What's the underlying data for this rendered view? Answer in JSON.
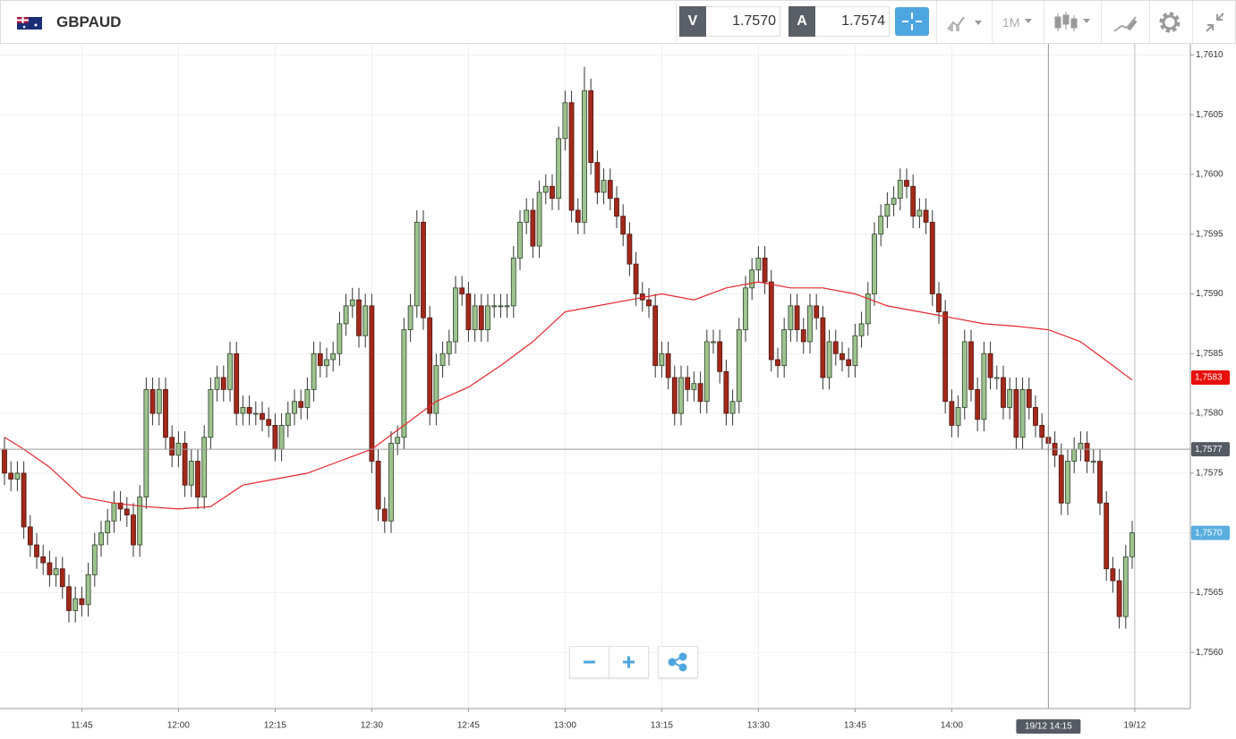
{
  "toolbar": {
    "symbol": "GBPAUD",
    "bid": {
      "label": "V",
      "price": "1.7570"
    },
    "ask": {
      "label": "A",
      "price": "1.7574"
    },
    "timeframe": "1M"
  },
  "chart_data": {
    "type": "candlestick",
    "up_color": "#9dc48e",
    "down_color": "#a3291b",
    "xlim": [
      -0.694,
      184.03
    ],
    "xticks": [
      {
        "value": 12,
        "label": "11:45"
      },
      {
        "value": 27,
        "label": "12:00"
      },
      {
        "value": 42,
        "label": "12:15"
      },
      {
        "value": 57,
        "label": "12:30"
      },
      {
        "value": 72,
        "label": "12:45"
      },
      {
        "value": 87,
        "label": "13:00"
      },
      {
        "value": 102,
        "label": "13:15"
      },
      {
        "value": 117,
        "label": "13:30"
      },
      {
        "value": 132,
        "label": "13:45"
      },
      {
        "value": 147,
        "label": "14:00"
      },
      {
        "value": 175.4,
        "label": "19/12"
      }
    ],
    "ylim": [
      1.75553,
      1.7611
    ],
    "yticks": [
      {
        "value": 1.756,
        "label": "1,7560"
      },
      {
        "value": 1.7565,
        "label": "1,7565"
      },
      {
        "value": 1.757,
        "label": "1,7570"
      },
      {
        "value": 1.7575,
        "label": "1,7575"
      },
      {
        "value": 1.758,
        "label": "1,7580"
      },
      {
        "value": 1.7585,
        "label": "1,7585"
      },
      {
        "value": 1.759,
        "label": "1,7590"
      },
      {
        "value": 1.7595,
        "label": "1,7595"
      },
      {
        "value": 1.76,
        "label": "1,7600"
      },
      {
        "value": 1.7605,
        "label": "1,7605"
      },
      {
        "value": 1.761,
        "label": "1,7610"
      }
    ],
    "grid": true,
    "open": [
      1.7577,
      1.7575,
      1.75745,
      1.7575,
      1.75705,
      1.7569,
      1.7568,
      1.75675,
      1.75665,
      1.7567,
      1.75655,
      1.75635,
      1.75645,
      1.7564,
      1.75665,
      1.7569,
      1.757,
      1.7571,
      1.75725,
      1.7572,
      1.75715,
      1.7569,
      1.7573,
      1.7582,
      1.758,
      1.7582,
      1.7578,
      1.75765,
      1.75775,
      1.7574,
      1.7576,
      1.7573,
      1.7578,
      1.7582,
      1.7583,
      1.7582,
      1.7585,
      1.758,
      1.75805,
      1.758,
      1.758,
      1.75795,
      1.7579,
      1.7577,
      1.7579,
      1.758,
      1.7581,
      1.75805,
      1.7582,
      1.7585,
      1.7584,
      1.75845,
      1.7585,
      1.75875,
      1.7589,
      1.75895,
      1.75865,
      1.7589,
      1.7576,
      1.7572,
      1.7571,
      1.75775,
      1.7578,
      1.7587,
      1.7589,
      1.7596,
      1.7588,
      1.758,
      1.7584,
      1.7585,
      1.7586,
      1.75905,
      1.759,
      1.7587,
      1.7589,
      1.7587,
      1.7589,
      1.7589,
      1.7589,
      1.7589,
      1.7593,
      1.7596,
      1.7597,
      1.7594,
      1.75985,
      1.7599,
      1.7598,
      1.7603,
      1.7606,
      1.7597,
      1.7596,
      1.7607,
      1.7601,
      1.75985,
      1.75995,
      1.7598,
      1.75965,
      1.7595,
      1.75925,
      1.759,
      1.75895,
      1.7589,
      1.7584,
      1.7585,
      1.7583,
      1.758,
      1.7583,
      1.7582,
      1.75825,
      1.7581,
      1.7586,
      1.7586,
      1.75835,
      1.758,
      1.7581,
      1.7587,
      1.75905,
      1.7592,
      1.7593,
      1.7591,
      1.75845,
      1.7584,
      1.7587,
      1.7589,
      1.7587,
      1.7586,
      1.7589,
      1.7588,
      1.7583,
      1.7586,
      1.7585,
      1.75845,
      1.7584,
      1.75865,
      1.75875,
      1.759,
      1.7595,
      1.75965,
      1.75975,
      1.7598,
      1.75995,
      1.7599,
      1.75965,
      1.7597,
      1.7596,
      1.759,
      1.75885,
      1.7581,
      1.7579,
      1.75805,
      1.7586,
      1.7582,
      1.75795,
      1.7585,
      1.7583,
      1.7583,
      1.75805,
      1.7582,
      1.7578,
      1.7582,
      1.75805,
      1.7579,
      1.7578,
      1.75775,
      1.75765,
      1.75725,
      1.7576,
      1.7577,
      1.75775,
      1.7576,
      1.7576,
      1.75725,
      1.7567,
      1.7566,
      1.7563,
      1.7568
    ],
    "high": [
      1.7578,
      1.7576,
      1.7576,
      1.7576,
      1.75715,
      1.757,
      1.7569,
      1.75685,
      1.7568,
      1.7568,
      1.75665,
      1.75655,
      1.75655,
      1.75675,
      1.757,
      1.7571,
      1.7572,
      1.75735,
      1.75735,
      1.7573,
      1.75725,
      1.7574,
      1.7583,
      1.7583,
      1.7583,
      1.7583,
      1.7579,
      1.75785,
      1.75785,
      1.7577,
      1.7577,
      1.7579,
      1.7583,
      1.7584,
      1.7584,
      1.7586,
      1.7586,
      1.75815,
      1.75815,
      1.7581,
      1.7581,
      1.75805,
      1.758,
      1.758,
      1.7581,
      1.7582,
      1.7582,
      1.7583,
      1.7586,
      1.7586,
      1.75855,
      1.7586,
      1.75885,
      1.759,
      1.75905,
      1.75905,
      1.759,
      1.759,
      1.7577,
      1.7573,
      1.75785,
      1.7579,
      1.7588,
      1.759,
      1.7597,
      1.7597,
      1.7589,
      1.7585,
      1.7586,
      1.7587,
      1.75915,
      1.75915,
      1.7591,
      1.759,
      1.759,
      1.759,
      1.759,
      1.759,
      1.759,
      1.7594,
      1.7597,
      1.7598,
      1.7598,
      1.75995,
      1.76,
      1.76,
      1.7604,
      1.7607,
      1.7607,
      1.7598,
      1.7609,
      1.7608,
      1.7602,
      1.76005,
      1.76005,
      1.7599,
      1.75975,
      1.7596,
      1.75935,
      1.7591,
      1.75905,
      1.759,
      1.7586,
      1.7586,
      1.7584,
      1.7584,
      1.7584,
      1.75835,
      1.75835,
      1.7587,
      1.7587,
      1.7587,
      1.75845,
      1.7582,
      1.7588,
      1.75915,
      1.7593,
      1.7594,
      1.7594,
      1.7592,
      1.75855,
      1.7588,
      1.759,
      1.759,
      1.7588,
      1.759,
      1.759,
      1.7589,
      1.7587,
      1.7587,
      1.7586,
      1.75855,
      1.75875,
      1.75885,
      1.7591,
      1.7596,
      1.75975,
      1.75985,
      1.7599,
      1.76005,
      1.76005,
      1.76,
      1.7598,
      1.7598,
      1.7597,
      1.7591,
      1.75895,
      1.7582,
      1.75815,
      1.7587,
      1.7587,
      1.7583,
      1.7586,
      1.7586,
      1.7584,
      1.7584,
      1.7583,
      1.7583,
      1.7583,
      1.7583,
      1.75815,
      1.758,
      1.7579,
      1.75785,
      1.75775,
      1.7577,
      1.7578,
      1.75785,
      1.75785,
      1.7577,
      1.7577,
      1.75735,
      1.7568,
      1.7567,
      1.7569,
      1.7571
    ],
    "low": [
      1.7574,
      1.75735,
      1.75735,
      1.75695,
      1.7568,
      1.7567,
      1.75665,
      1.75655,
      1.75655,
      1.75645,
      1.75625,
      1.75625,
      1.7563,
      1.7563,
      1.75655,
      1.7568,
      1.7569,
      1.757,
      1.7571,
      1.75705,
      1.7568,
      1.7568,
      1.7572,
      1.7579,
      1.7579,
      1.7577,
      1.75755,
      1.75755,
      1.7573,
      1.7573,
      1.7572,
      1.7572,
      1.7577,
      1.7581,
      1.7581,
      1.7581,
      1.7579,
      1.7579,
      1.7579,
      1.7579,
      1.75785,
      1.7578,
      1.7576,
      1.7576,
      1.7578,
      1.7579,
      1.75795,
      1.75795,
      1.7581,
      1.7583,
      1.7583,
      1.75835,
      1.7584,
      1.75865,
      1.7588,
      1.75855,
      1.75855,
      1.7575,
      1.7571,
      1.757,
      1.757,
      1.75765,
      1.7577,
      1.7586,
      1.7588,
      1.7587,
      1.7579,
      1.7579,
      1.7583,
      1.7584,
      1.7585,
      1.7589,
      1.7586,
      1.7586,
      1.7586,
      1.7586,
      1.7588,
      1.7588,
      1.7588,
      1.7588,
      1.7592,
      1.7595,
      1.7593,
      1.7593,
      1.75975,
      1.7597,
      1.7597,
      1.7602,
      1.7596,
      1.7595,
      1.7595,
      1.76,
      1.75975,
      1.75975,
      1.7597,
      1.75955,
      1.7594,
      1.75915,
      1.7589,
      1.75885,
      1.7588,
      1.7583,
      1.7583,
      1.7582,
      1.7579,
      1.7579,
      1.7581,
      1.7581,
      1.758,
      1.758,
      1.7585,
      1.75825,
      1.7579,
      1.7579,
      1.758,
      1.7586,
      1.75895,
      1.7591,
      1.759,
      1.75835,
      1.7583,
      1.7583,
      1.7586,
      1.7586,
      1.7585,
      1.7585,
      1.7587,
      1.7582,
      1.7582,
      1.7584,
      1.75835,
      1.7583,
      1.7583,
      1.75855,
      1.75865,
      1.7589,
      1.7594,
      1.75955,
      1.75965,
      1.7597,
      1.7598,
      1.75955,
      1.75955,
      1.7595,
      1.7589,
      1.75875,
      1.758,
      1.7578,
      1.7578,
      1.75795,
      1.7581,
      1.75785,
      1.75785,
      1.7582,
      1.7582,
      1.75795,
      1.75795,
      1.7577,
      1.7577,
      1.75795,
      1.7578,
      1.7577,
      1.75765,
      1.75755,
      1.75715,
      1.75715,
      1.7575,
      1.7576,
      1.7575,
      1.7575,
      1.75715,
      1.7566,
      1.7565,
      1.7562,
      1.7562,
      1.7567
    ],
    "close": [
      1.7575,
      1.75745,
      1.7575,
      1.75705,
      1.7569,
      1.7568,
      1.75675,
      1.75665,
      1.7567,
      1.75655,
      1.75635,
      1.75645,
      1.7564,
      1.75665,
      1.7569,
      1.757,
      1.7571,
      1.75725,
      1.7572,
      1.75715,
      1.7569,
      1.7573,
      1.7582,
      1.758,
      1.7582,
      1.7578,
      1.75765,
      1.75775,
      1.7574,
      1.7576,
      1.7573,
      1.7578,
      1.7582,
      1.7583,
      1.7582,
      1.7585,
      1.758,
      1.75805,
      1.758,
      1.758,
      1.75795,
      1.7579,
      1.7577,
      1.7579,
      1.758,
      1.7581,
      1.75805,
      1.7582,
      1.7585,
      1.7584,
      1.75845,
      1.7585,
      1.75875,
      1.7589,
      1.75895,
      1.75865,
      1.7589,
      1.7576,
      1.7572,
      1.7571,
      1.75775,
      1.7578,
      1.7587,
      1.7589,
      1.7596,
      1.7588,
      1.758,
      1.7584,
      1.7585,
      1.7586,
      1.75905,
      1.759,
      1.7587,
      1.7589,
      1.7587,
      1.7589,
      1.7589,
      1.7589,
      1.7589,
      1.7593,
      1.7596,
      1.7597,
      1.7594,
      1.75985,
      1.7599,
      1.7598,
      1.7603,
      1.7606,
      1.7597,
      1.7596,
      1.7607,
      1.7601,
      1.75985,
      1.75995,
      1.7598,
      1.75965,
      1.7595,
      1.75925,
      1.759,
      1.75895,
      1.7589,
      1.7584,
      1.7585,
      1.7583,
      1.758,
      1.7583,
      1.7582,
      1.75825,
      1.7581,
      1.7586,
      1.7586,
      1.75835,
      1.758,
      1.7581,
      1.7587,
      1.75905,
      1.7592,
      1.7593,
      1.7591,
      1.75845,
      1.7584,
      1.7587,
      1.7589,
      1.7587,
      1.7586,
      1.7589,
      1.7588,
      1.7583,
      1.7586,
      1.7585,
      1.75845,
      1.7584,
      1.75865,
      1.75875,
      1.759,
      1.7595,
      1.75965,
      1.75975,
      1.7598,
      1.75995,
      1.7599,
      1.75965,
      1.7597,
      1.7596,
      1.759,
      1.75885,
      1.7581,
      1.7579,
      1.75805,
      1.7586,
      1.7582,
      1.75795,
      1.7585,
      1.7583,
      1.7583,
      1.75805,
      1.7582,
      1.7578,
      1.7582,
      1.75805,
      1.7579,
      1.7578,
      1.75775,
      1.75765,
      1.75725,
      1.7576,
      1.7577,
      1.75775,
      1.7576,
      1.7576,
      1.75725,
      1.7567,
      1.7566,
      1.7563,
      1.7568,
      1.757
    ],
    "ma": {
      "color": "#e3262b",
      "x": [
        0,
        3,
        7,
        12,
        17,
        22,
        27,
        32,
        37,
        42,
        47,
        52,
        57,
        62,
        67,
        72,
        77,
        82,
        87,
        92,
        97,
        102,
        107,
        112,
        117,
        122,
        127,
        132,
        137,
        142,
        147,
        152,
        157,
        162,
        167,
        172,
        175
      ],
      "values": [
        1.7578,
        1.7577,
        1.75755,
        1.7573,
        1.75725,
        1.75722,
        1.7572,
        1.75722,
        1.7574,
        1.75745,
        1.7575,
        1.7576,
        1.7577,
        1.7579,
        1.7581,
        1.75822,
        1.7584,
        1.7586,
        1.75885,
        1.7589,
        1.75895,
        1.759,
        1.75895,
        1.75905,
        1.7591,
        1.75905,
        1.75905,
        1.759,
        1.7589,
        1.75885,
        1.7588,
        1.75875,
        1.75873,
        1.7587,
        1.7586,
        1.7584,
        1.75828
      ]
    },
    "crosshair": {
      "x": {
        "value": 162,
        "label": "19/12 14:15"
      },
      "y": {
        "value": 1.7577,
        "label": "1,7577"
      }
    },
    "price_markers": [
      {
        "value": 1.7583,
        "label": "1,7583",
        "color": "#e8100c"
      },
      {
        "value": 1.757,
        "label": "1,7570",
        "color": "#5aaee0"
      }
    ]
  }
}
